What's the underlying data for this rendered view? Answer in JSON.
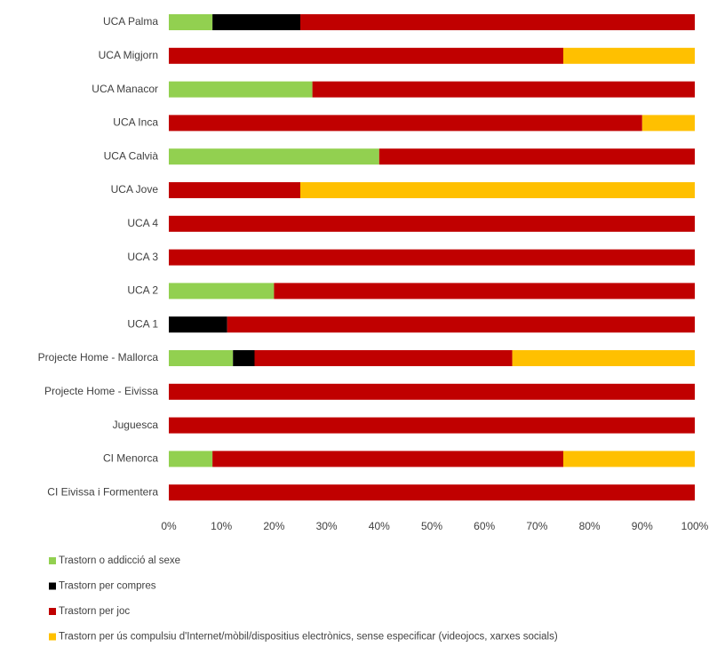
{
  "chart_data": {
    "type": "stacked-barh",
    "categories": [
      "UCA Palma",
      "UCA Migjorn",
      "UCA Manacor",
      "UCA Inca",
      "UCA Calvià",
      "UCA Jove",
      "UCA 4",
      "UCA 3",
      "UCA 2",
      "UCA 1",
      "Projecte Home - Mallorca",
      "Projecte Home - Eivissa",
      "Juguesca",
      "CI Menorca",
      "CI Eivissa i Formentera"
    ],
    "series": [
      {
        "name": "Trastorn o addicció al sexe",
        "color": "#92d050",
        "values": [
          8.3,
          0,
          27.3,
          0,
          40,
          0,
          0,
          0,
          20,
          0,
          12.2,
          0,
          0,
          8.3,
          0
        ]
      },
      {
        "name": "Trastorn per compres",
        "color": "#000000",
        "values": [
          16.7,
          0,
          0,
          0,
          0,
          0,
          0,
          0,
          0,
          11.1,
          4.1,
          0,
          0,
          0,
          0
        ]
      },
      {
        "name": "Trastorn per joc",
        "color": "#c00000",
        "values": [
          75,
          75,
          72.7,
          90,
          60,
          25,
          100,
          100,
          80,
          88.9,
          49,
          100,
          100,
          66.7,
          100
        ]
      },
      {
        "name": "Trastorn per ús compulsiu d'Internet/mòbil/dispositius electrònics, sense especificar (videojocs, xarxes socials)",
        "color": "#ffc000",
        "values": [
          0,
          25,
          0,
          10,
          0,
          75,
          0,
          0,
          0,
          0,
          34.7,
          0,
          0,
          25,
          0
        ]
      }
    ],
    "xlim": [
      0,
      100
    ],
    "xticks": [
      {
        "value": 0,
        "label": "0%"
      },
      {
        "value": 10,
        "label": "10%"
      },
      {
        "value": 20,
        "label": "20%"
      },
      {
        "value": 30,
        "label": "30%"
      },
      {
        "value": 40,
        "label": "40%"
      },
      {
        "value": 50,
        "label": "50%"
      },
      {
        "value": 60,
        "label": "60%"
      },
      {
        "value": 70,
        "label": "70%"
      },
      {
        "value": 80,
        "label": "80%"
      },
      {
        "value": 90,
        "label": "90%"
      },
      {
        "value": 100,
        "label": "100%"
      }
    ],
    "legend": "bottom"
  }
}
